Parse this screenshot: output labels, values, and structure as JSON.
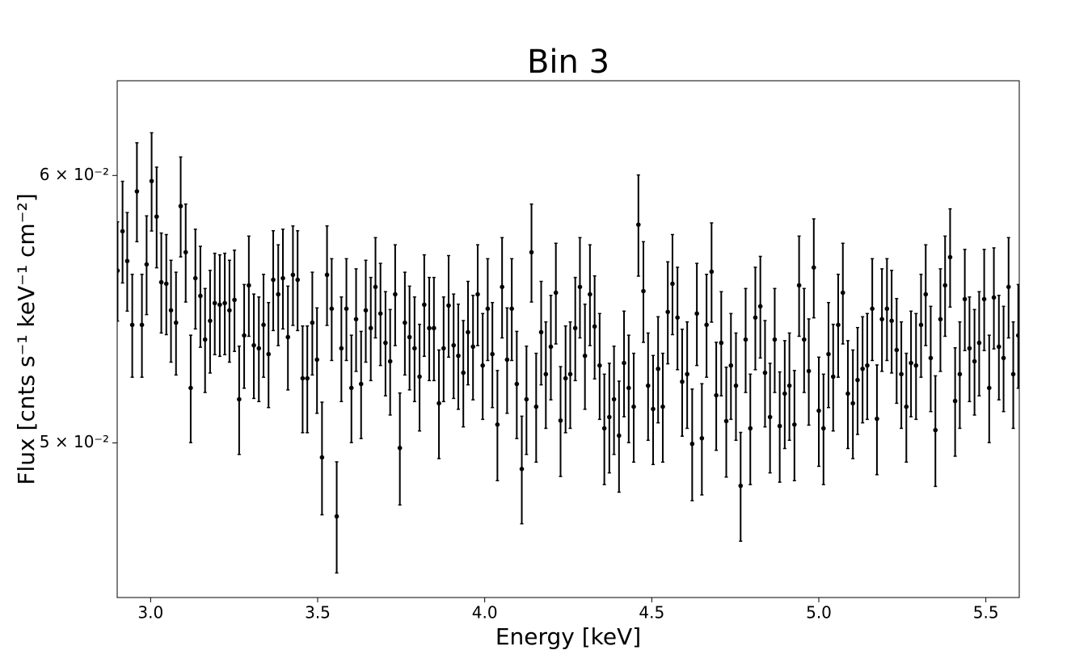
{
  "chart_data": {
    "type": "errorbar",
    "title": "Bin 3",
    "x_label": "Energy [keV]",
    "y_label": "Flux [cnts s⁻¹ keV⁻¹ cm⁻²]",
    "yscale": "log",
    "color": "#000000",
    "xlim": [
      2.9,
      5.6
    ],
    "ylim": [
      0.045,
      0.064
    ],
    "xticks": [
      {
        "value": 3,
        "label": "3.0"
      },
      3.5,
      {
        "value": 4,
        "label": "4.0"
      },
      4.5,
      {
        "value": 5,
        "label": "5.0"
      },
      5.5
    ],
    "yticks": [
      {
        "value": 0.05,
        "label": "5 × 10⁻²"
      },
      {
        "value": 0.06,
        "label": "6 × 10⁻²"
      }
    ],
    "x": [
      2.901,
      2.916,
      2.93,
      2.945,
      2.959,
      2.974,
      2.988,
      3.003,
      3.018,
      3.032,
      3.047,
      3.061,
      3.076,
      3.09,
      3.105,
      3.12,
      3.134,
      3.149,
      3.163,
      3.178,
      3.192,
      3.207,
      3.222,
      3.236,
      3.251,
      3.265,
      3.28,
      3.294,
      3.309,
      3.324,
      3.338,
      3.353,
      3.367,
      3.382,
      3.396,
      3.411,
      3.426,
      3.44,
      3.455,
      3.469,
      3.484,
      3.498,
      3.513,
      3.528,
      3.542,
      3.557,
      3.571,
      3.586,
      3.601,
      3.615,
      3.63,
      3.644,
      3.659,
      3.673,
      3.688,
      3.703,
      3.717,
      3.732,
      3.746,
      3.761,
      3.775,
      3.79,
      3.805,
      3.819,
      3.834,
      3.848,
      3.863,
      3.877,
      3.892,
      3.907,
      3.921,
      3.936,
      3.95,
      3.965,
      3.979,
      3.994,
      4.009,
      4.023,
      4.038,
      4.052,
      4.067,
      4.081,
      4.096,
      4.111,
      4.125,
      4.14,
      4.154,
      4.169,
      4.183,
      4.198,
      4.213,
      4.227,
      4.242,
      4.256,
      4.271,
      4.285,
      4.3,
      4.315,
      4.329,
      4.344,
      4.358,
      4.373,
      4.387,
      4.402,
      4.417,
      4.431,
      4.446,
      4.46,
      4.475,
      4.489,
      4.504,
      4.519,
      4.533,
      4.548,
      4.562,
      4.577,
      4.591,
      4.606,
      4.621,
      4.635,
      4.65,
      4.664,
      4.679,
      4.693,
      4.708,
      4.723,
      4.737,
      4.752,
      4.766,
      4.781,
      4.795,
      4.81,
      4.825,
      4.839,
      4.854,
      4.868,
      4.883,
      4.898,
      4.912,
      4.927,
      4.941,
      4.956,
      4.97,
      4.985,
      5.0,
      5.014,
      5.029,
      5.043,
      5.058,
      5.072,
      5.087,
      5.102,
      5.116,
      5.131,
      5.145,
      5.16,
      5.174,
      5.189,
      5.204,
      5.218,
      5.233,
      5.247,
      5.262,
      5.276,
      5.291,
      5.306,
      5.32,
      5.335,
      5.349,
      5.364,
      5.378,
      5.393,
      5.408,
      5.422,
      5.437,
      5.451,
      5.466,
      5.48,
      5.495,
      5.51,
      5.524,
      5.539,
      5.553,
      5.568,
      5.582,
      5.597
    ],
    "values": [
      0.05623,
      0.05776,
      0.0566,
      0.05419,
      0.05935,
      0.05419,
      0.05647,
      0.05977,
      0.05834,
      0.05579,
      0.05573,
      0.05473,
      0.05427,
      0.05876,
      0.05694,
      0.05191,
      0.05594,
      0.05527,
      0.05365,
      0.05434,
      0.055,
      0.05494,
      0.055,
      0.05473,
      0.05512,
      0.05151,
      0.0538,
      0.05567,
      0.05344,
      0.05333,
      0.05419,
      0.05312,
      0.05588,
      0.05533,
      0.05594,
      0.05374,
      0.05607,
      0.05588,
      0.05225,
      0.05225,
      0.05427,
      0.05292,
      0.04951,
      0.05607,
      0.05479,
      0.04756,
      0.05333,
      0.05479,
      0.05191,
      0.0544,
      0.05205,
      0.05473,
      0.05407,
      0.05561,
      0.05461,
      0.05353,
      0.05286,
      0.05533,
      0.04983,
      0.05427,
      0.05374,
      0.05333,
      0.05231,
      0.05494,
      0.05407,
      0.05407,
      0.05137,
      0.05333,
      0.05491,
      0.05344,
      0.05306,
      0.05245,
      0.05392,
      0.05339,
      0.05533,
      0.05271,
      0.05479,
      0.05312,
      0.05063,
      0.05561,
      0.05292,
      0.05479,
      0.05205,
      0.04912,
      0.05151,
      0.05694,
      0.05125,
      0.05392,
      0.0524,
      0.05339,
      0.05539,
      0.05077,
      0.05225,
      0.0524,
      0.05407,
      0.05561,
      0.05306,
      0.05533,
      0.05413,
      0.05271,
      0.0505,
      0.05089,
      0.05151,
      0.05025,
      0.0528,
      0.05191,
      0.05125,
      0.05802,
      0.05545,
      0.05199,
      0.05117,
      0.05259,
      0.05125,
      0.05467,
      0.05573,
      0.05446,
      0.05213,
      0.0524,
      0.04997,
      0.05461,
      0.05016,
      0.05419,
      0.05619,
      0.05165,
      0.05353,
      0.05075,
      0.05271,
      0.05199,
      0.04856,
      0.05365,
      0.0505,
      0.05446,
      0.05488,
      0.05245,
      0.05089,
      0.05365,
      0.05058,
      0.05171,
      0.05199,
      0.05063,
      0.05567,
      0.05365,
      0.05251,
      0.05635,
      0.05111,
      0.0505,
      0.05312,
      0.05231,
      0.05419,
      0.05539,
      0.05171,
      0.05137,
      0.05219,
      0.05259,
      0.05271,
      0.05479,
      0.05083,
      0.0544,
      0.05479,
      0.05434,
      0.05327,
      0.0524,
      0.05125,
      0.0528,
      0.05271,
      0.05419,
      0.05533,
      0.05298,
      0.05044,
      0.0544,
      0.05567,
      0.05675,
      0.05145,
      0.0524,
      0.05515,
      0.05333,
      0.05286,
      0.05353,
      0.05515,
      0.05191,
      0.05521,
      0.05339,
      0.05298,
      0.05561,
      0.0524,
      0.0538
    ],
    "errors": [
      0.0019,
      0.002,
      0.0019,
      0.0019,
      0.002,
      0.0019,
      0.0019,
      0.002,
      0.002,
      0.0019,
      0.0019,
      0.0019,
      0.0019,
      0.002,
      0.0019,
      0.0019,
      0.0019,
      0.0019,
      0.0019,
      0.0019,
      0.0019,
      0.0019,
      0.0019,
      0.0019,
      0.0019,
      0.0019,
      0.0019,
      0.0019,
      0.0019,
      0.0019,
      0.0019,
      0.0019,
      0.0019,
      0.0019,
      0.0019,
      0.0019,
      0.0019,
      0.0019,
      0.0019,
      0.0019,
      0.0019,
      0.0019,
      0.0019,
      0.0019,
      0.0019,
      0.0018,
      0.0019,
      0.0019,
      0.0019,
      0.0019,
      0.0019,
      0.0019,
      0.0019,
      0.0019,
      0.0019,
      0.0019,
      0.0019,
      0.0019,
      0.0019,
      0.0019,
      0.0019,
      0.0019,
      0.0019,
      0.0019,
      0.0019,
      0.0019,
      0.0019,
      0.0019,
      0.0019,
      0.0019,
      0.0019,
      0.0019,
      0.0019,
      0.0019,
      0.0019,
      0.0019,
      0.0019,
      0.0019,
      0.0019,
      0.0019,
      0.0019,
      0.0019,
      0.0019,
      0.0018,
      0.0019,
      0.0019,
      0.0019,
      0.0019,
      0.0019,
      0.0019,
      0.0019,
      0.0019,
      0.0019,
      0.0019,
      0.0019,
      0.0019,
      0.0019,
      0.0019,
      0.0019,
      0.0019,
      0.0019,
      0.0019,
      0.0019,
      0.0019,
      0.0019,
      0.0019,
      0.0019,
      0.002,
      0.0019,
      0.0019,
      0.0019,
      0.0019,
      0.0019,
      0.0019,
      0.0019,
      0.0019,
      0.0019,
      0.0019,
      0.0019,
      0.0019,
      0.0019,
      0.0019,
      0.0019,
      0.0019,
      0.0019,
      0.0019,
      0.0019,
      0.0019,
      0.0018,
      0.0019,
      0.0019,
      0.0019,
      0.0019,
      0.0019,
      0.0019,
      0.0019,
      0.0019,
      0.0019,
      0.0019,
      0.0019,
      0.0019,
      0.0019,
      0.0019,
      0.0019,
      0.0019,
      0.0019,
      0.0019,
      0.0019,
      0.0019,
      0.0019,
      0.0019,
      0.0019,
      0.0019,
      0.0019,
      0.0019,
      0.0019,
      0.0019,
      0.0019,
      0.0019,
      0.0019,
      0.0019,
      0.0019,
      0.0019,
      0.0019,
      0.0019,
      0.0019,
      0.0019,
      0.0019,
      0.0019,
      0.0019,
      0.0019,
      0.0019,
      0.0019,
      0.0019,
      0.0019,
      0.0019,
      0.0019,
      0.0019,
      0.0019,
      0.0019,
      0.0019,
      0.0019,
      0.0019,
      0.0019,
      0.0019,
      0.0019
    ]
  }
}
